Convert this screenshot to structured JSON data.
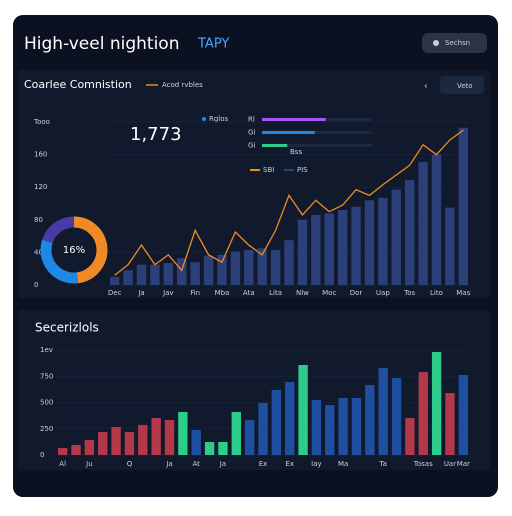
{
  "header": {
    "title": "High-veel nightion",
    "accent": "TAPY",
    "button": "Sechsn"
  },
  "panel1": {
    "title": "Coarlee Comnistion",
    "legend": "Acod rvbles",
    "button": "Veto",
    "stat": "1,773",
    "tag": "Rglos"
  },
  "panel2": {
    "title": "Secerizlols"
  },
  "chart_data": [
    {
      "type": "combo",
      "categories": [
        "Dec",
        null,
        "Ja",
        null,
        "Jav",
        null,
        "Fin",
        null,
        "Mba",
        null,
        "Ata",
        null,
        "Lita",
        null,
        "Nlw",
        null,
        "Moc",
        null,
        "Dor",
        null,
        "Uap",
        null,
        "Tos",
        null,
        "Lito",
        null,
        "Mas"
      ],
      "series": [
        {
          "name": "SBI",
          "color": "#f08a24",
          "values": [
            12,
            25,
            49,
            25,
            37,
            18,
            67,
            37,
            28,
            65,
            49,
            37,
            67,
            110,
            86,
            104,
            90,
            98,
            117,
            110,
            123,
            135,
            147,
            172,
            160,
            178,
            190
          ]
        },
        {
          "name": "PIS",
          "color": "#2b3f78",
          "values": [
            10,
            18,
            25,
            25,
            27,
            33,
            28,
            36,
            37,
            41,
            43,
            45,
            43,
            55,
            80,
            86,
            88,
            92,
            96,
            104,
            107,
            117,
            129,
            151,
            160,
            95,
            193
          ]
        }
      ],
      "ylim": [
        0,
        200
      ],
      "yticks": [
        0,
        40,
        80,
        120,
        160,
        {
          "value": 200,
          "label": "Tooo"
        }
      ]
    },
    {
      "type": "pie",
      "values": [
        48,
        32,
        20
      ],
      "colors": [
        "#f08a24",
        "#1e88e5",
        "#4a3aa8"
      ],
      "center_label": "16%"
    },
    {
      "type": "bar",
      "categories": [
        "Al",
        null,
        "Ju",
        null,
        null,
        "Q",
        null,
        null,
        "Ja",
        null,
        "At",
        null,
        "Ja",
        null,
        null,
        "Ex",
        null,
        "Ex",
        null,
        "Iay",
        null,
        "Ma",
        null,
        null,
        "Ta",
        null,
        null,
        "Tosas",
        null,
        "Uar",
        "Mar"
      ],
      "values": [
        67,
        95,
        143,
        219,
        267,
        219,
        286,
        352,
        333,
        410,
        238,
        124,
        124,
        410,
        333,
        495,
        619,
        695,
        857,
        524,
        476,
        543,
        543,
        667,
        829,
        733,
        352,
        790,
        981,
        590,
        762
      ],
      "colors": [
        "#b3394a",
        "#b3394a",
        "#b3394a",
        "#b3394a",
        "#b3394a",
        "#b3394a",
        "#b3394a",
        "#b3394a",
        "#b3394a",
        "#2ecc8a",
        "#1f4fa0",
        "#2ecc8a",
        "#2ecc8a",
        "#2ecc8a",
        "#1f4fa0",
        "#1f4fa0",
        "#1f4fa0",
        "#1f4fa0",
        "#2ecc8a",
        "#1f4fa0",
        "#1f4fa0",
        "#1f4fa0",
        "#1f4fa0",
        "#1f4fa0",
        "#1f4fa0",
        "#1f4fa0",
        "#b3394a",
        "#b3394a",
        "#2ecc8a",
        "#b3394a",
        "#1f4fa0"
      ],
      "ylim": [
        0,
        1000
      ],
      "yticks": [
        0,
        250,
        500,
        750,
        {
          "value": 1000,
          "label": "1ev"
        }
      ]
    },
    {
      "type": "barh",
      "title": "Bss",
      "categories": [
        "Rl",
        "Gi",
        "Gi"
      ],
      "values": [
        58,
        48,
        23
      ],
      "colors": [
        "#a855f7",
        "#1e88e5",
        "#2ecc8a"
      ],
      "xlim": [
        0,
        100
      ]
    }
  ]
}
